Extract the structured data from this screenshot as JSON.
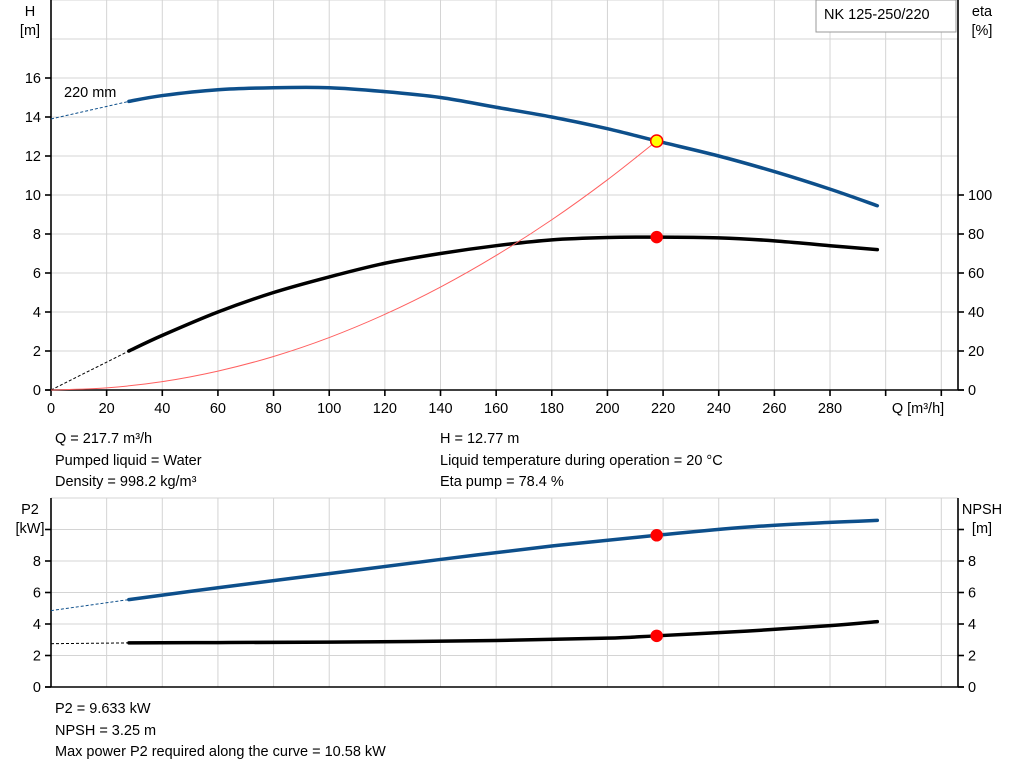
{
  "colors": {
    "head_curve": "#0d4f8b",
    "eta_curve": "#000000",
    "system_curve": "#ff6060",
    "operating_point": "#ff0000",
    "duty_marker_fill": "#ffff00",
    "grid": "#d4d4d4"
  },
  "chart_data": [
    {
      "type": "line",
      "title": "NK 125-250/220",
      "xlabel": "Q [m³/h]",
      "ylabel": "H\n[m]",
      "y2label": "eta\n[%]",
      "xlim": [
        0,
        326
      ],
      "ylim": [
        0,
        20
      ],
      "y2lim": [
        0,
        200
      ],
      "xticks": [
        0,
        20,
        40,
        60,
        80,
        100,
        120,
        140,
        160,
        180,
        200,
        220,
        240,
        260,
        280
      ],
      "xgrid": [
        0,
        20,
        40,
        60,
        80,
        100,
        120,
        140,
        160,
        180,
        200,
        220,
        240,
        260,
        280,
        300,
        320
      ],
      "yticks": [
        0,
        2,
        4,
        6,
        8,
        10,
        12,
        14,
        16
      ],
      "ygrid": [
        0,
        2,
        4,
        6,
        8,
        10,
        12,
        14,
        16,
        18
      ],
      "y2ticks": [
        0,
        20,
        40,
        60,
        80,
        100
      ],
      "grid": true,
      "annotations": [
        "220 mm"
      ],
      "series": [
        {
          "key": "head",
          "axis": "left",
          "color": "#0d4f8b",
          "style": "solid",
          "x": [
            28,
            40,
            60,
            80,
            100,
            120,
            140,
            160,
            180,
            200,
            217.7,
            240,
            260,
            280,
            297
          ],
          "y": [
            14.8,
            15.1,
            15.4,
            15.5,
            15.5,
            15.3,
            15.0,
            14.5,
            14.0,
            13.4,
            12.77,
            12.0,
            11.2,
            10.3,
            9.45
          ]
        },
        {
          "key": "head_extrapolated",
          "axis": "left",
          "color": "#0d4f8b",
          "style": "dashed",
          "x": [
            0,
            28
          ],
          "y": [
            13.9,
            14.8
          ]
        },
        {
          "key": "eta",
          "axis": "right",
          "color": "#000000",
          "style": "solid",
          "x": [
            28,
            40,
            60,
            80,
            100,
            120,
            140,
            160,
            180,
            200,
            217.7,
            240,
            260,
            280,
            297
          ],
          "y": [
            20,
            28,
            40,
            50,
            58,
            65,
            70,
            74,
            77,
            78.2,
            78.4,
            78,
            76.5,
            74,
            72
          ]
        },
        {
          "key": "eta_extrapolated",
          "axis": "right",
          "color": "#000000",
          "style": "dashed",
          "x": [
            0,
            28
          ],
          "y": [
            0,
            20
          ]
        },
        {
          "key": "system_curve",
          "axis": "left",
          "color": "#ff6060",
          "style": "thin",
          "x": [
            0,
            20,
            40,
            60,
            80,
            100,
            120,
            140,
            160,
            180,
            200,
            217.7
          ],
          "y": [
            0,
            0.11,
            0.43,
            0.97,
            1.72,
            2.69,
            3.88,
            5.28,
            6.9,
            8.73,
            10.78,
            12.77
          ]
        }
      ],
      "points": [
        {
          "key": "duty_point",
          "axis": "left",
          "x": 217.7,
          "y": 12.77,
          "fill": "#ffff00",
          "stroke": "#ff0000"
        },
        {
          "key": "eta_point",
          "axis": "right",
          "x": 217.7,
          "y": 78.4,
          "fill": "#ff0000",
          "stroke": "#ff0000"
        }
      ]
    },
    {
      "type": "line",
      "ylabel": "P2\n[kW]",
      "y2label": "NPSH\n[m]",
      "xlim": [
        0,
        326
      ],
      "ylim": [
        0,
        12
      ],
      "y2lim": [
        0,
        12
      ],
      "yticks": [
        0,
        2,
        4,
        6,
        8
      ],
      "ytick_marks": [
        0,
        2,
        4,
        6,
        8,
        10
      ],
      "y2ticks": [
        0,
        2,
        4,
        6,
        8
      ],
      "ygrid": [
        0,
        2,
        4,
        6,
        8,
        10
      ],
      "grid": true,
      "series": [
        {
          "key": "p2",
          "axis": "left",
          "color": "#0d4f8b",
          "style": "solid",
          "x": [
            28,
            60,
            100,
            140,
            180,
            217.7,
            250,
            280,
            297
          ],
          "y": [
            5.55,
            6.3,
            7.2,
            8.1,
            8.95,
            9.633,
            10.15,
            10.45,
            10.58
          ]
        },
        {
          "key": "p2_extrapolated",
          "axis": "left",
          "color": "#0d4f8b",
          "style": "dashed",
          "x": [
            0,
            28
          ],
          "y": [
            4.85,
            5.55
          ]
        },
        {
          "key": "npsh",
          "axis": "right",
          "color": "#000000",
          "style": "solid",
          "x": [
            28,
            60,
            100,
            160,
            200,
            217.7,
            250,
            280,
            297
          ],
          "y": [
            2.8,
            2.82,
            2.85,
            2.95,
            3.1,
            3.25,
            3.55,
            3.9,
            4.15
          ]
        },
        {
          "key": "npsh_extrapolated",
          "axis": "right",
          "color": "#000000",
          "style": "dashed",
          "x": [
            0,
            28
          ],
          "y": [
            2.75,
            2.8
          ]
        }
      ],
      "points": [
        {
          "key": "p2_point",
          "axis": "left",
          "x": 217.7,
          "y": 9.633,
          "fill": "#ff0000",
          "stroke": "#ff0000"
        },
        {
          "key": "npsh_point",
          "axis": "right",
          "x": 217.7,
          "y": 3.25,
          "fill": "#ff0000",
          "stroke": "#ff0000"
        }
      ]
    }
  ],
  "info_top": {
    "left": [
      "Q = 217.7 m³/h",
      "Pumped liquid = Water",
      "Density = 998.2 kg/m³"
    ],
    "right": [
      "H = 12.77 m",
      "Liquid temperature during operation = 20 °C",
      "Eta pump = 78.4 %"
    ]
  },
  "info_bottom": [
    "P2 = 9.633 kW",
    "NPSH = 3.25 m",
    "Max power P2 required along the curve = 10.58 kW"
  ]
}
